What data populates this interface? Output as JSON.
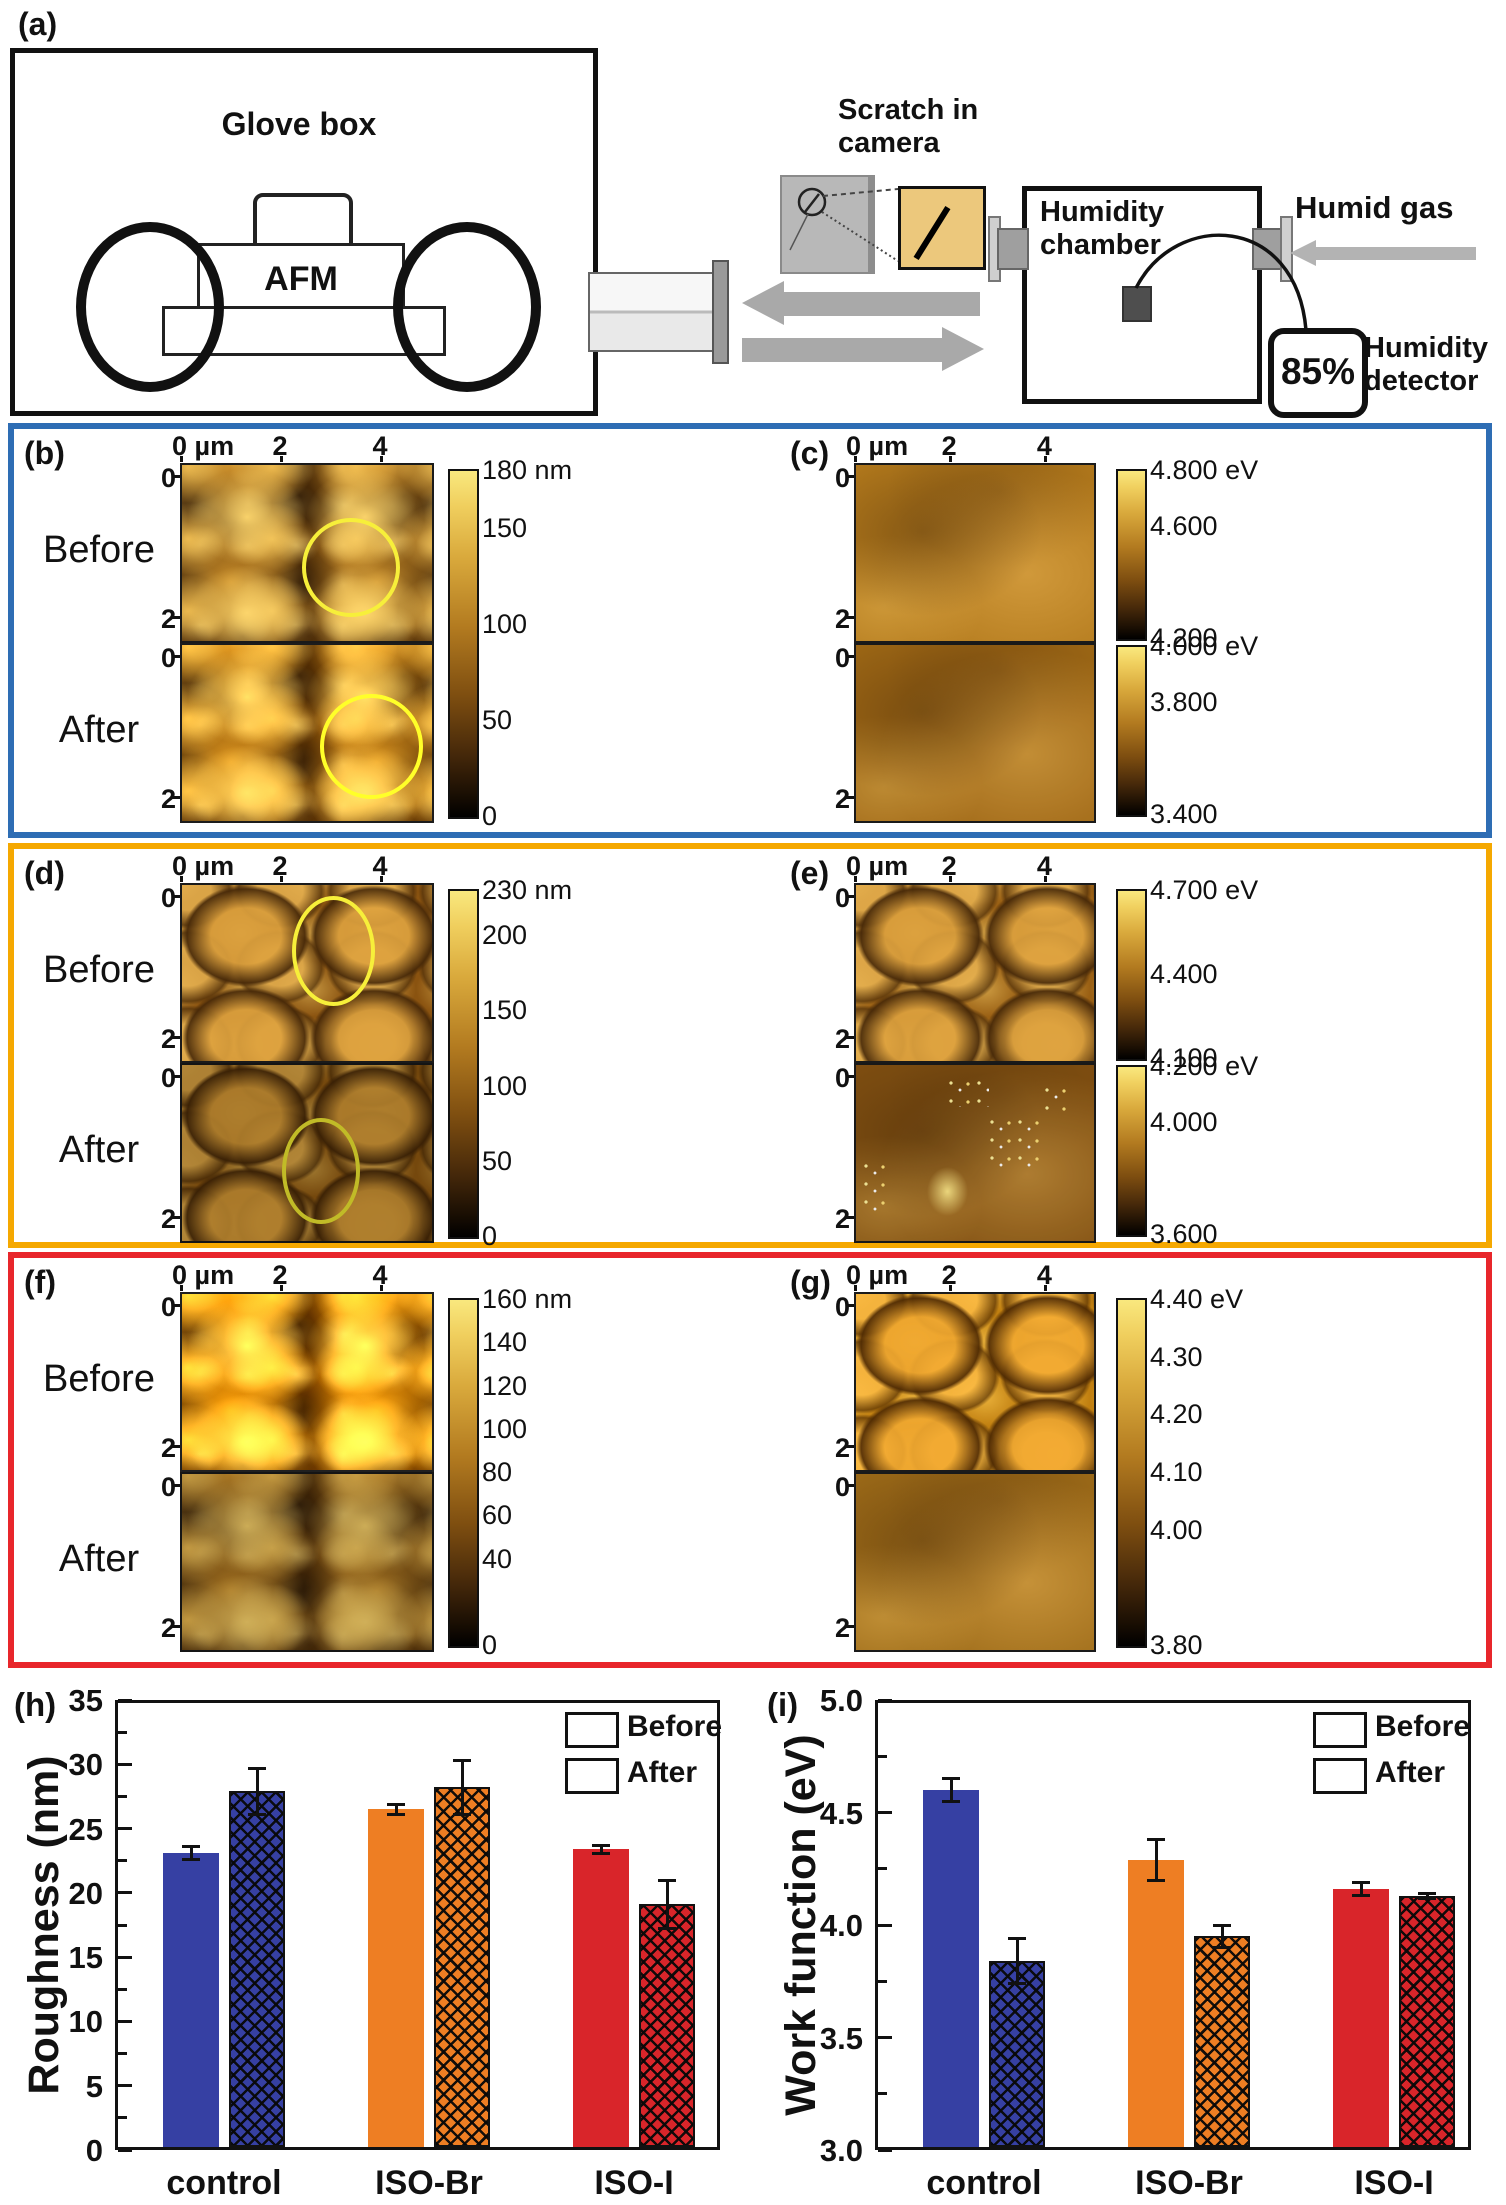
{
  "figure": {
    "panel_a": {
      "letter": "(a)",
      "glove_box_label": "Glove box",
      "afm_label": "AFM",
      "scratch_camera": [
        "Scratch in",
        "camera"
      ],
      "chamber": [
        "Humidity",
        "chamber"
      ],
      "humid_gas": "Humid gas",
      "humidity_value": "85%",
      "detector": [
        "Humidity",
        "detector"
      ]
    },
    "afm_rows": [
      {
        "accent": "#2e6db4",
        "left": {
          "letter": "(b)",
          "before_label": "Before",
          "after_label": "After",
          "x_axis": {
            "ticks": [
              {
                "label": "0 µm",
                "value": 0
              },
              {
                "label": "2",
                "value": 2
              },
              {
                "label": "4",
                "value": 4
              }
            ]
          },
          "y_ticks": [
            {
              "label": "0",
              "value": 0
            },
            {
              "label": "2",
              "value": 2
            }
          ],
          "colorbars": [
            {
              "ticks": [
                {
                  "label": "180 nm",
                  "value": 180
                },
                {
                  "label": "150",
                  "value": 150
                },
                {
                  "label": "100",
                  "value": 100
                },
                {
                  "label": "50",
                  "value": 50
                },
                {
                  "label": "0",
                  "value": 0
                }
              ]
            }
          ]
        },
        "right": {
          "letter": "(c)",
          "x_axis": {
            "ticks": [
              {
                "label": "0 µm",
                "value": 0
              },
              {
                "label": "2",
                "value": 2
              },
              {
                "label": "4",
                "value": 4
              }
            ]
          },
          "y_ticks": [
            {
              "label": "0",
              "value": 0
            },
            {
              "label": "2",
              "value": 2
            }
          ],
          "colorbars": [
            {
              "ticks": [
                {
                  "label": "4.800 eV",
                  "value": 4.8
                },
                {
                  "label": "4.600",
                  "value": 4.6
                },
                {
                  "label": "4.200",
                  "value": 4.2
                }
              ]
            },
            {
              "ticks": [
                {
                  "label": "4.000 eV",
                  "value": 4.0
                },
                {
                  "label": "3.800",
                  "value": 3.8
                },
                {
                  "label": "3.400",
                  "value": 3.4
                }
              ]
            }
          ]
        }
      },
      {
        "accent": "#f5a800",
        "left": {
          "letter": "(d)",
          "before_label": "Before",
          "after_label": "After",
          "x_axis": {
            "ticks": [
              {
                "label": "0 µm",
                "value": 0
              },
              {
                "label": "2",
                "value": 2
              },
              {
                "label": "4",
                "value": 4
              }
            ]
          },
          "y_ticks": [
            {
              "label": "0",
              "value": 0
            },
            {
              "label": "2",
              "value": 2
            }
          ],
          "colorbars": [
            {
              "ticks": [
                {
                  "label": "230 nm",
                  "value": 230
                },
                {
                  "label": "200",
                  "value": 200
                },
                {
                  "label": "150",
                  "value": 150
                },
                {
                  "label": "100",
                  "value": 100
                },
                {
                  "label": "50",
                  "value": 50
                },
                {
                  "label": "0",
                  "value": 0
                }
              ]
            }
          ]
        },
        "right": {
          "letter": "(e)",
          "x_axis": {
            "ticks": [
              {
                "label": "0 µm",
                "value": 0
              },
              {
                "label": "2",
                "value": 2
              },
              {
                "label": "4",
                "value": 4
              }
            ]
          },
          "y_ticks": [
            {
              "label": "0",
              "value": 0
            },
            {
              "label": "2",
              "value": 2
            }
          ],
          "colorbars": [
            {
              "ticks": [
                {
                  "label": "4.700 eV",
                  "value": 4.7
                },
                {
                  "label": "4.400",
                  "value": 4.4
                },
                {
                  "label": "4.100",
                  "value": 4.1
                }
              ]
            },
            {
              "ticks": [
                {
                  "label": "4.200 eV",
                  "value": 4.2
                },
                {
                  "label": "4.000",
                  "value": 4.0
                },
                {
                  "label": "3.600",
                  "value": 3.6
                }
              ]
            }
          ]
        }
      },
      {
        "accent": "#e8262b",
        "left": {
          "letter": "(f)",
          "before_label": "Before",
          "after_label": "After",
          "x_axis": {
            "ticks": [
              {
                "label": "0 µm",
                "value": 0
              },
              {
                "label": "2",
                "value": 2
              },
              {
                "label": "4",
                "value": 4
              }
            ]
          },
          "y_ticks": [
            {
              "label": "0",
              "value": 0
            },
            {
              "label": "2",
              "value": 2
            }
          ],
          "colorbars": [
            {
              "ticks": [
                {
                  "label": "160 nm",
                  "value": 160
                },
                {
                  "label": "140",
                  "value": 140
                },
                {
                  "label": "120",
                  "value": 120
                },
                {
                  "label": "100",
                  "value": 100
                },
                {
                  "label": "80",
                  "value": 80
                },
                {
                  "label": "60",
                  "value": 60
                },
                {
                  "label": "40",
                  "value": 40
                },
                {
                  "label": "0",
                  "value": 0
                }
              ]
            }
          ]
        },
        "right": {
          "letter": "(g)",
          "x_axis": {
            "ticks": [
              {
                "label": "0 µm",
                "value": 0
              },
              {
                "label": "2",
                "value": 2
              },
              {
                "label": "4",
                "value": 4
              }
            ]
          },
          "y_ticks": [
            {
              "label": "0",
              "value": 0
            },
            {
              "label": "2",
              "value": 2
            }
          ],
          "colorbars": [
            {
              "ticks": [
                {
                  "label": "4.40 eV",
                  "value": 4.4
                },
                {
                  "label": "4.30",
                  "value": 4.3
                },
                {
                  "label": "4.20",
                  "value": 4.2
                },
                {
                  "label": "4.10",
                  "value": 4.1
                },
                {
                  "label": "4.00",
                  "value": 4.0
                },
                {
                  "label": "3.80",
                  "value": 3.8
                }
              ]
            }
          ]
        }
      }
    ]
  },
  "chart_data": [
    {
      "type": "bar",
      "panel_label": "(h)",
      "title": "",
      "xlabel": "",
      "ylabel": "Roughness (nm)",
      "ylim": [
        0,
        35
      ],
      "yticks": [
        {
          "label": "0",
          "value": 0
        },
        {
          "label": "5",
          "value": 5
        },
        {
          "label": "10",
          "value": 10
        },
        {
          "label": "15",
          "value": 15
        },
        {
          "label": "20",
          "value": 20
        },
        {
          "label": "25",
          "value": 25
        },
        {
          "label": "30",
          "value": 30
        },
        {
          "label": "35",
          "value": 35
        }
      ],
      "categories": [
        "control",
        "ISO-Br",
        "ISO-I"
      ],
      "category_colors": [
        "#3640a3",
        "#ee7e23",
        "#d9252a"
      ],
      "grid": false,
      "legend_position": "top-right",
      "series": [
        {
          "name": "Before",
          "pattern": "solid",
          "values": [
            23.1,
            26.5,
            23.4
          ],
          "errors": [
            0.5,
            0.4,
            0.3
          ]
        },
        {
          "name": "After",
          "pattern": "crosshatch",
          "values": [
            27.9,
            28.2,
            19.1
          ],
          "errors": [
            1.8,
            2.1,
            1.9
          ]
        }
      ]
    },
    {
      "type": "bar",
      "panel_label": "(i)",
      "title": "",
      "xlabel": "",
      "ylabel": "Work function (eV)",
      "ylim": [
        3.0,
        5.0
      ],
      "yticks": [
        {
          "label": "3.0",
          "value": 3.0
        },
        {
          "label": "3.5",
          "value": 3.5
        },
        {
          "label": "4.0",
          "value": 4.0
        },
        {
          "label": "4.5",
          "value": 4.5
        },
        {
          "label": "5.0",
          "value": 5.0
        }
      ],
      "categories": [
        "control",
        "ISO-Br",
        "ISO-I"
      ],
      "category_colors": [
        "#3640a3",
        "#ee7e23",
        "#d9252a"
      ],
      "grid": false,
      "legend_position": "top-right",
      "series": [
        {
          "name": "Before",
          "pattern": "solid",
          "values": [
            4.6,
            4.29,
            4.16
          ],
          "errors": [
            0.05,
            0.09,
            0.03
          ]
        },
        {
          "name": "After",
          "pattern": "crosshatch",
          "values": [
            3.84,
            3.95,
            4.13
          ],
          "errors": [
            0.1,
            0.05,
            0.01
          ]
        }
      ]
    }
  ]
}
